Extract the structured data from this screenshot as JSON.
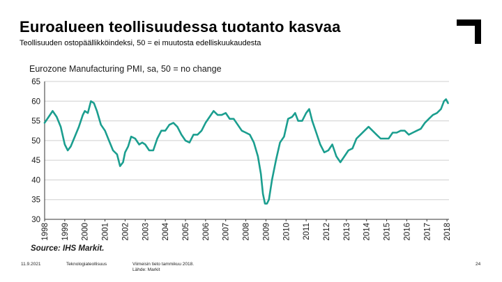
{
  "slide": {
    "title": "Euroalueen teollisuudessa tuotanto kasvaa",
    "subtitle": "Teollisuuden ostopäällikköindeksi, 50 = ei muutosta edelliskuukaudesta"
  },
  "footer": {
    "date": "11.9.2021",
    "organization": "Teknologiateollisuus",
    "note_line1": "Viimeisin tieto tammikuu 2018.",
    "note_line2": "Lähde: Markit",
    "page": "24"
  },
  "colors": {
    "line": "#1b9e8f",
    "grid": "#cfcfcf",
    "axis": "#333333"
  },
  "chart_data": {
    "type": "line",
    "title": "Eurozone Manufacturing PMI, sa, 50 = no change",
    "source": "Source: IHS Markit.",
    "xlabel": "",
    "ylabel": "",
    "ylim": [
      30,
      65
    ],
    "yticks": [
      30,
      35,
      40,
      45,
      50,
      55,
      60,
      65
    ],
    "xticks": [
      "1998",
      "1999",
      "2000",
      "2001",
      "2002",
      "2003",
      "2004",
      "2005",
      "2006",
      "2007",
      "2008",
      "2009",
      "2010",
      "2011",
      "2012",
      "2013",
      "2014",
      "2015",
      "2016",
      "2017",
      "2018"
    ],
    "xlim": [
      1998.0,
      2018.1
    ],
    "series": [
      {
        "name": "Eurozone Manufacturing PMI",
        "x": [
          1998.0,
          1998.2,
          1998.4,
          1998.6,
          1998.8,
          1999.0,
          1999.15,
          1999.3,
          1999.5,
          1999.7,
          1999.9,
          2000.0,
          2000.15,
          2000.3,
          2000.45,
          2000.6,
          2000.8,
          2001.0,
          2001.2,
          2001.4,
          2001.6,
          2001.75,
          2001.9,
          2002.0,
          2002.15,
          2002.3,
          2002.5,
          2002.7,
          2002.85,
          2003.0,
          2003.2,
          2003.4,
          2003.6,
          2003.8,
          2004.0,
          2004.2,
          2004.4,
          2004.6,
          2004.8,
          2005.0,
          2005.2,
          2005.4,
          2005.6,
          2005.8,
          2006.0,
          2006.2,
          2006.4,
          2006.6,
          2006.8,
          2007.0,
          2007.2,
          2007.4,
          2007.6,
          2007.8,
          2008.0,
          2008.2,
          2008.4,
          2008.6,
          2008.75,
          2008.85,
          2008.95,
          2009.05,
          2009.15,
          2009.3,
          2009.5,
          2009.7,
          2009.9,
          2010.1,
          2010.3,
          2010.45,
          2010.6,
          2010.8,
          2011.0,
          2011.15,
          2011.3,
          2011.5,
          2011.7,
          2011.9,
          2012.1,
          2012.3,
          2012.5,
          2012.7,
          2012.9,
          2013.1,
          2013.3,
          2013.5,
          2013.7,
          2013.9,
          2014.1,
          2014.3,
          2014.5,
          2014.7,
          2014.9,
          2015.1,
          2015.3,
          2015.5,
          2015.7,
          2015.9,
          2016.1,
          2016.3,
          2016.5,
          2016.7,
          2016.9,
          2017.1,
          2017.3,
          2017.5,
          2017.7,
          2017.85,
          2017.95,
          2018.05
        ],
        "values": [
          54.5,
          56.0,
          57.5,
          56.0,
          53.5,
          49.0,
          47.5,
          48.5,
          51.0,
          53.5,
          56.5,
          57.5,
          57.0,
          60.0,
          59.5,
          57.5,
          54.0,
          52.5,
          50.0,
          47.5,
          46.5,
          43.5,
          44.5,
          47.0,
          48.5,
          51.0,
          50.5,
          49.0,
          49.5,
          49.0,
          47.5,
          47.5,
          50.5,
          52.5,
          52.5,
          54.0,
          54.5,
          53.5,
          51.5,
          50.0,
          49.5,
          51.5,
          51.5,
          52.5,
          54.5,
          56.0,
          57.5,
          56.5,
          56.5,
          57.0,
          55.5,
          55.5,
          54.0,
          52.5,
          52.0,
          51.5,
          49.5,
          46.0,
          41.5,
          36.5,
          34.0,
          34.0,
          35.0,
          40.0,
          45.0,
          49.5,
          51.0,
          55.5,
          56.0,
          57.0,
          55.0,
          55.0,
          57.0,
          58.0,
          55.0,
          52.0,
          49.0,
          47.0,
          47.5,
          49.0,
          46.0,
          44.5,
          46.0,
          47.5,
          48.0,
          50.5,
          51.5,
          52.5,
          53.5,
          52.5,
          51.5,
          50.5,
          50.5,
          50.5,
          52.0,
          52.0,
          52.5,
          52.5,
          51.5,
          52.0,
          52.5,
          53.0,
          54.5,
          55.5,
          56.5,
          57.0,
          58.0,
          60.0,
          60.5,
          59.5
        ]
      }
    ]
  }
}
